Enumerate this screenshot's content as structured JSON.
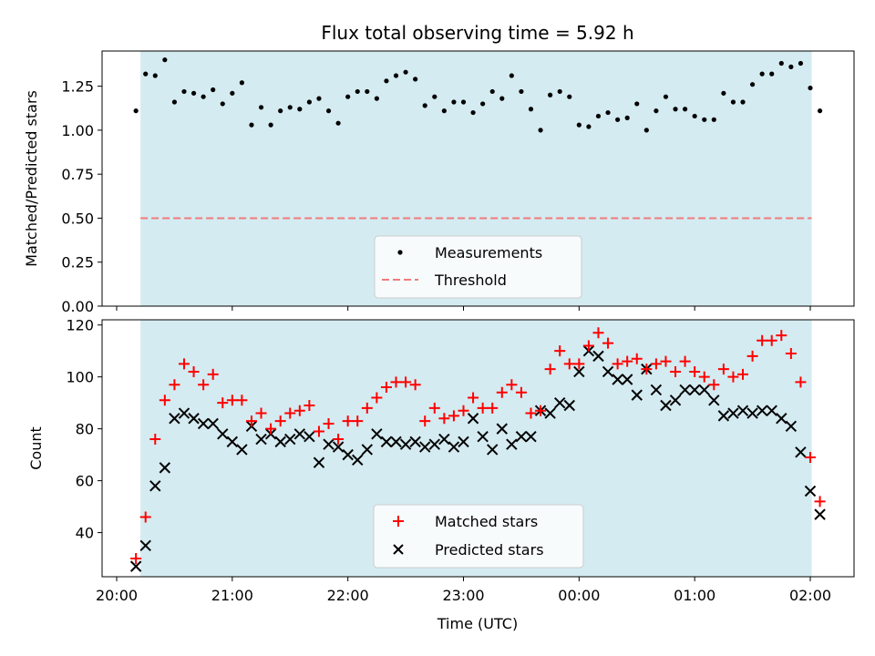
{
  "title": "Flux total observing time = 5.92 h",
  "colors": {
    "observing_band": "#d4ebf1",
    "measurement": "#000000",
    "threshold": "#f07b7b",
    "matched": "#ff0000",
    "predicted": "#000000",
    "legend_bg": "#ffffff"
  },
  "chart_data": [
    {
      "type": "scatter",
      "ylabel": "Matched/Predicted stars",
      "ylim": [
        0,
        1.45
      ],
      "yticks": [
        "0.00",
        "0.25",
        "0.50",
        "0.75",
        "1.00",
        "1.25"
      ],
      "ytick_values": [
        0,
        0.25,
        0.5,
        0.75,
        1.0,
        1.25
      ],
      "legend_position": "bottom-center",
      "series": [
        {
          "name": "Measurements",
          "marker": "dot",
          "x": [
            "20:10",
            "20:15",
            "20:20",
            "20:25",
            "20:30",
            "20:35",
            "20:40",
            "20:45",
            "20:50",
            "20:55",
            "21:00",
            "21:05",
            "21:10",
            "21:15",
            "21:20",
            "21:25",
            "21:30",
            "21:35",
            "21:40",
            "21:45",
            "21:50",
            "21:55",
            "22:00",
            "22:05",
            "22:10",
            "22:15",
            "22:20",
            "22:25",
            "22:30",
            "22:35",
            "22:40",
            "22:45",
            "22:50",
            "22:55",
            "23:00",
            "23:05",
            "23:10",
            "23:15",
            "23:20",
            "23:25",
            "23:30",
            "23:35",
            "23:40",
            "23:45",
            "23:50",
            "23:55",
            "00:00",
            "00:05",
            "00:10",
            "00:15",
            "00:20",
            "00:25",
            "00:30",
            "00:35",
            "00:40",
            "00:45",
            "00:50",
            "00:55",
            "01:00",
            "01:05",
            "01:10",
            "01:15",
            "01:20",
            "01:25",
            "01:30",
            "01:35",
            "01:40",
            "01:45",
            "01:50",
            "01:55",
            "02:00",
            "02:05"
          ],
          "values": [
            1.11,
            1.32,
            1.31,
            1.4,
            1.16,
            1.22,
            1.21,
            1.19,
            1.23,
            1.15,
            1.21,
            1.27,
            1.03,
            1.13,
            1.03,
            1.11,
            1.13,
            1.12,
            1.16,
            1.18,
            1.11,
            1.04,
            1.19,
            1.22,
            1.22,
            1.18,
            1.28,
            1.31,
            1.33,
            1.29,
            1.14,
            1.19,
            1.11,
            1.16,
            1.16,
            1.1,
            1.15,
            1.22,
            1.18,
            1.31,
            1.22,
            1.12,
            1.0,
            1.2,
            1.22,
            1.19,
            1.03,
            1.02,
            1.08,
            1.1,
            1.06,
            1.07,
            1.15,
            1.0,
            1.11,
            1.19,
            1.12,
            1.12,
            1.08,
            1.06,
            1.06,
            1.21,
            1.16,
            1.16,
            1.26,
            1.32,
            1.32,
            1.38,
            1.36,
            1.38,
            1.24,
            1.11
          ]
        },
        {
          "name": "Threshold",
          "style": "dashed",
          "value": 0.5
        }
      ]
    },
    {
      "type": "scatter",
      "xlabel": "Time (UTC)",
      "ylabel": "Count",
      "ylim": [
        23,
        122
      ],
      "yticks": [
        "40",
        "60",
        "80",
        "100",
        "120"
      ],
      "ytick_values": [
        40,
        60,
        80,
        100,
        120
      ],
      "xticks": [
        "20:00",
        "21:00",
        "22:00",
        "23:00",
        "00:00",
        "01:00",
        "02:00"
      ],
      "legend_position": "bottom-center",
      "series": [
        {
          "name": "Matched stars",
          "marker": "plus",
          "x": [
            "20:10",
            "20:15",
            "20:20",
            "20:25",
            "20:30",
            "20:35",
            "20:40",
            "20:45",
            "20:50",
            "20:55",
            "21:00",
            "21:05",
            "21:10",
            "21:15",
            "21:20",
            "21:25",
            "21:30",
            "21:35",
            "21:40",
            "21:45",
            "21:50",
            "21:55",
            "22:00",
            "22:05",
            "22:10",
            "22:15",
            "22:20",
            "22:25",
            "22:30",
            "22:35",
            "22:40",
            "22:45",
            "22:50",
            "22:55",
            "23:00",
            "23:05",
            "23:10",
            "23:15",
            "23:20",
            "23:25",
            "23:30",
            "23:35",
            "23:40",
            "23:45",
            "23:50",
            "23:55",
            "00:00",
            "00:05",
            "00:10",
            "00:15",
            "00:20",
            "00:25",
            "00:30",
            "00:35",
            "00:40",
            "00:45",
            "00:50",
            "00:55",
            "01:00",
            "01:05",
            "01:10",
            "01:15",
            "01:20",
            "01:25",
            "01:30",
            "01:35",
            "01:40",
            "01:45",
            "01:50",
            "01:55",
            "02:00",
            "02:05"
          ],
          "values": [
            30,
            46,
            76,
            91,
            97,
            105,
            102,
            97,
            101,
            90,
            91,
            91,
            83,
            86,
            80,
            83,
            86,
            87,
            89,
            79,
            82,
            76,
            83,
            83,
            88,
            92,
            96,
            98,
            98,
            97,
            83,
            88,
            84,
            85,
            87,
            92,
            88,
            88,
            94,
            97,
            94,
            86,
            87,
            103,
            110,
            105,
            105,
            112,
            117,
            113,
            105,
            106,
            107,
            103,
            105,
            106,
            102,
            106,
            102,
            100,
            97,
            103,
            100,
            101,
            108,
            114,
            114,
            116,
            109,
            98,
            69,
            52
          ]
        },
        {
          "name": "Predicted stars",
          "marker": "cross",
          "x": [
            "20:10",
            "20:15",
            "20:20",
            "20:25",
            "20:30",
            "20:35",
            "20:40",
            "20:45",
            "20:50",
            "20:55",
            "21:00",
            "21:05",
            "21:10",
            "21:15",
            "21:20",
            "21:25",
            "21:30",
            "21:35",
            "21:40",
            "21:45",
            "21:50",
            "21:55",
            "22:00",
            "22:05",
            "22:10",
            "22:15",
            "22:20",
            "22:25",
            "22:30",
            "22:35",
            "22:40",
            "22:45",
            "22:50",
            "22:55",
            "23:00",
            "23:05",
            "23:10",
            "23:15",
            "23:20",
            "23:25",
            "23:30",
            "23:35",
            "23:40",
            "23:45",
            "23:50",
            "23:55",
            "00:00",
            "00:05",
            "00:10",
            "00:15",
            "00:20",
            "00:25",
            "00:30",
            "00:35",
            "00:40",
            "00:45",
            "00:50",
            "00:55",
            "01:00",
            "01:05",
            "01:10",
            "01:15",
            "01:20",
            "01:25",
            "01:30",
            "01:35",
            "01:40",
            "01:45",
            "01:50",
            "01:55",
            "02:00",
            "02:05"
          ],
          "values": [
            27,
            35,
            58,
            65,
            84,
            86,
            84,
            82,
            82,
            78,
            75,
            72,
            81,
            76,
            78,
            75,
            76,
            78,
            77,
            67,
            74,
            73,
            70,
            68,
            72,
            78,
            75,
            75,
            74,
            75,
            73,
            74,
            76,
            73,
            75,
            84,
            77,
            72,
            80,
            74,
            77,
            77,
            87,
            86,
            90,
            89,
            102,
            110,
            108,
            102,
            99,
            99,
            93,
            103,
            95,
            89,
            91,
            95,
            95,
            95,
            91,
            85,
            86,
            87,
            86,
            87,
            87,
            84,
            81,
            71,
            56,
            47
          ]
        }
      ]
    }
  ]
}
